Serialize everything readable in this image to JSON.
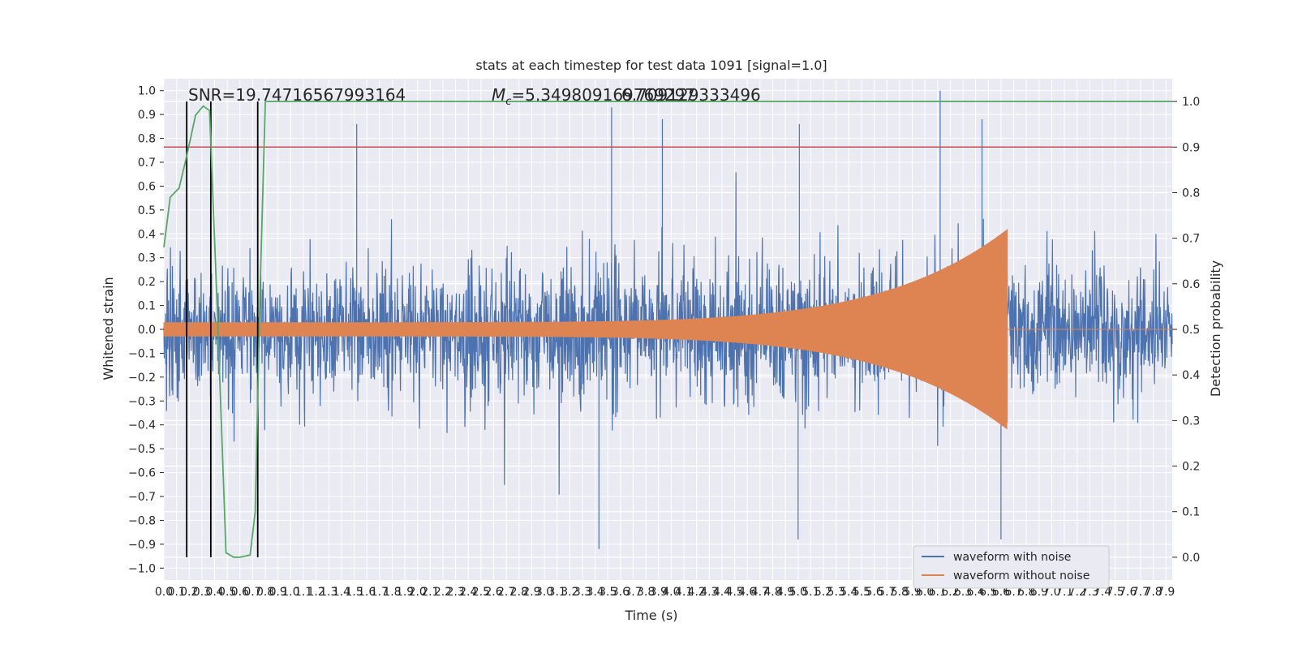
{
  "chart_data": {
    "type": "line",
    "title": "stats at each timestep for test data 1091 [signal=1.0]",
    "xlabel": "Time (s)",
    "ylabel_left": "Whitened strain",
    "ylabel_right": "Detection probability",
    "xlim": [
      0.0,
      7.95
    ],
    "ylim_left": [
      -1.05,
      1.05
    ],
    "ylim_right": [
      -0.05,
      1.05
    ],
    "x_ticks": [
      "0.0",
      "0.1",
      "0.2",
      "0.3",
      "0.4",
      "0.5",
      "0.6",
      "0.7",
      "0.8",
      "0.9",
      "1.0",
      "1.1",
      "1.2",
      "1.3",
      "1.4",
      "1.5",
      "1.6",
      "1.7",
      "1.8",
      "1.9",
      "2.0",
      "2.1",
      "2.2",
      "2.3",
      "2.4",
      "2.5",
      "2.6",
      "2.7",
      "2.8",
      "2.9",
      "3.0",
      "3.1",
      "3.2",
      "3.3",
      "3.4",
      "3.5",
      "3.6",
      "3.7",
      "3.8",
      "3.9",
      "4.0",
      "4.1",
      "4.2",
      "4.3",
      "4.4",
      "4.5",
      "4.6",
      "4.7",
      "4.8",
      "4.9",
      "5.0",
      "5.1",
      "5.2",
      "5.3",
      "5.4",
      "5.5",
      "5.6",
      "5.7",
      "5.8",
      "5.9",
      "6.0",
      "6.1",
      "6.2",
      "6.3",
      "6.4",
      "6.5",
      "6.6",
      "6.7",
      "6.8",
      "6.9",
      "7.0",
      "7.1",
      "7.2",
      "7.3",
      "7.4",
      "7.5",
      "7.6",
      "7.7",
      "7.8",
      "7.9"
    ],
    "y_ticks_left": [
      "−1.0",
      "−0.9",
      "−0.8",
      "−0.7",
      "−0.6",
      "−0.5",
      "−0.4",
      "−0.3",
      "−0.2",
      "−0.1",
      "0.0",
      "0.1",
      "0.2",
      "0.3",
      "0.4",
      "0.5",
      "0.6",
      "0.7",
      "0.8",
      "0.9",
      "1.0"
    ],
    "y_ticks_right": [
      "0.0",
      "0.1",
      "0.2",
      "0.3",
      "0.4",
      "0.5",
      "0.6",
      "0.7",
      "0.8",
      "0.9",
      "1.0"
    ],
    "annotations": {
      "snr": "SNR=19.74716567993164",
      "mc_label": "M",
      "mc_sub": "c",
      "mc_value": "=5.349809169769297",
      "overlap_text": "6.709129333496"
    },
    "threshold": {
      "name": "detection threshold",
      "value": 0.9
    },
    "vertical_markers": [
      0.18,
      0.37,
      0.74
    ],
    "series": [
      {
        "name": "waveform with noise",
        "color": "#4c72b0",
        "axis": "left",
        "envelope_std": 0.12,
        "peak_max": 1.0,
        "peak_min": -0.92,
        "length_s": 7.95
      },
      {
        "name": "waveform without noise",
        "color": "#dd8452",
        "axis": "left",
        "amp_start": 0.03,
        "amp_at_merger": 0.42,
        "merger_time": 6.65,
        "min_at_merger": -0.39
      },
      {
        "name": "detection probability",
        "color": "#55a868",
        "axis": "right",
        "x": [
          0.0,
          0.05,
          0.12,
          0.18,
          0.25,
          0.31,
          0.36,
          0.42,
          0.49,
          0.55,
          0.6,
          0.68,
          0.72,
          0.76,
          0.8,
          1.0,
          7.95
        ],
        "y": [
          0.68,
          0.79,
          0.81,
          0.88,
          0.97,
          0.99,
          0.98,
          0.55,
          0.01,
          0.0,
          0.0,
          0.005,
          0.1,
          0.6,
          1.0,
          1.0,
          1.0
        ]
      }
    ],
    "legend": {
      "position": "lower right",
      "entries": [
        "waveform with noise",
        "waveform without noise"
      ]
    },
    "colors": {
      "background": "#eaeaf2",
      "grid": "#ffffff",
      "threshold": "#c44e52",
      "marker": "#000000"
    }
  }
}
